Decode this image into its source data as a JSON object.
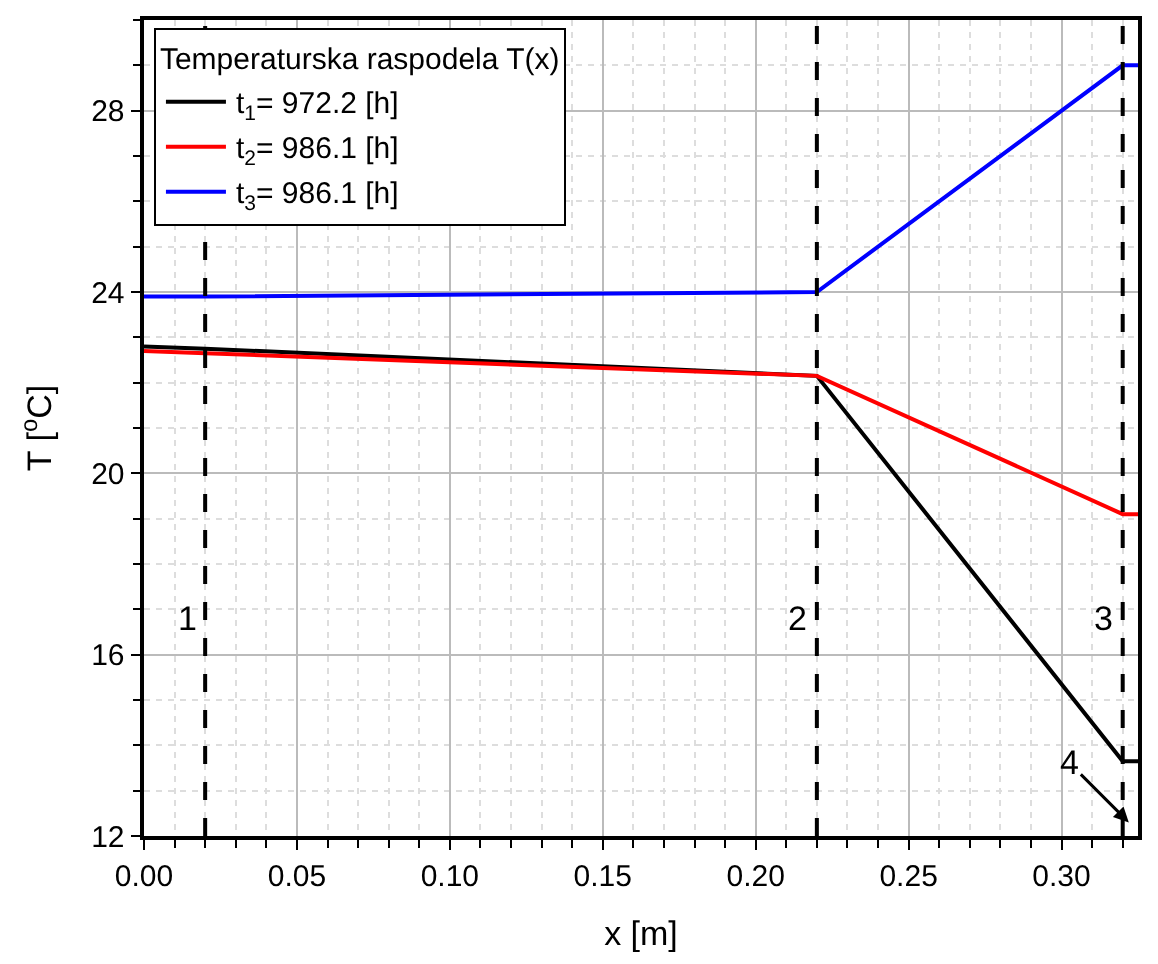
{
  "chart_data": {
    "type": "line",
    "xlabel": "x [m]",
    "ylabel": "T [$^{o}$C]",
    "legend_title": "Temperaturska raspodela T(x)",
    "series": [
      {
        "name": "t$_{1}$= 972.2 [h]",
        "color": "#000000",
        "x": [
          0,
          0.02,
          0.22,
          0.32,
          0.325
        ],
        "values": [
          22.8,
          22.75,
          22.15,
          13.65,
          13.65
        ]
      },
      {
        "name": "t$_{2}$= 986.1 [h]",
        "color": "#ff0000",
        "x": [
          0,
          0.02,
          0.22,
          0.32,
          0.325
        ],
        "values": [
          22.7,
          22.65,
          22.15,
          19.1,
          19.1
        ]
      },
      {
        "name": "t$_{3}$= 986.1 [h]",
        "color": "#0000ff",
        "x": [
          0,
          0.02,
          0.22,
          0.32,
          0.325
        ],
        "values": [
          23.9,
          23.9,
          24.0,
          29.0,
          29.0
        ]
      }
    ],
    "xlim": [
      0,
      0.325
    ],
    "xticks": [
      {
        "value": 0,
        "label": "0.00"
      },
      0.05,
      {
        "value": 0.1,
        "label": "0.10"
      },
      0.15,
      {
        "value": 0.2,
        "label": "0.20"
      },
      0.25,
      {
        "value": 0.3,
        "label": "0.30"
      }
    ],
    "ylim": [
      12,
      30
    ],
    "yticks": [
      12,
      16,
      20,
      24,
      28
    ],
    "ref_lines": [
      {
        "axis": "x",
        "value": 0.02,
        "color": "#000000",
        "line_style": "dashed"
      },
      {
        "axis": "x",
        "value": 0.22,
        "color": "#000000",
        "line_style": "dashed"
      },
      {
        "axis": "x",
        "value": 0.32,
        "color": "#000000",
        "line_style": "dashed"
      }
    ],
    "annotations": [
      {
        "text": "1",
        "x": 0.02,
        "y": 16.8
      },
      {
        "text": "2",
        "x": 0.22,
        "y": 16.8
      },
      {
        "text": "3",
        "x": 0.32,
        "y": 16.8
      },
      {
        "text": "4",
        "x": 0.322,
        "y": 12.3
      }
    ],
    "grid": true,
    "legend": "top left",
    "line_style": "solid",
    "marker": "none"
  }
}
